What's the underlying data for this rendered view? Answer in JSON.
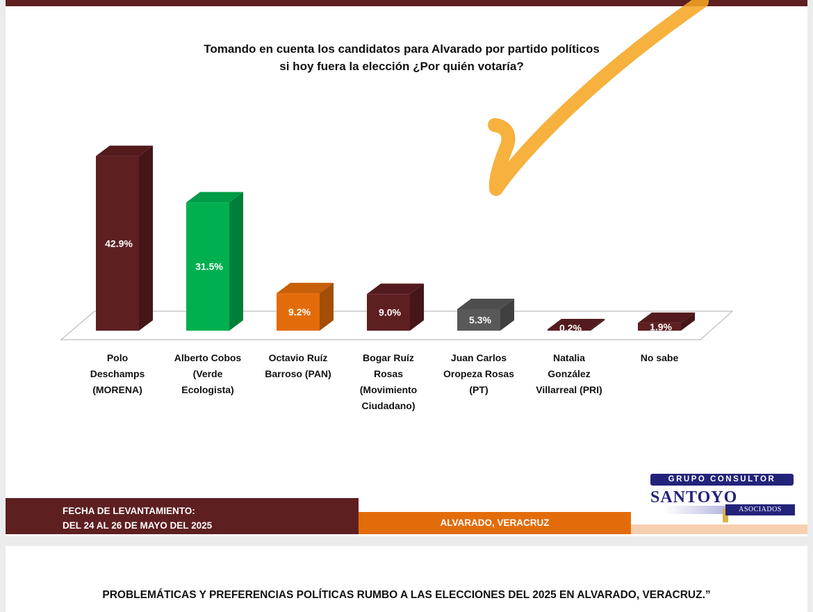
{
  "title": {
    "line1": "Tomando en cuenta los candidatos para Alvarado  por partido políticos",
    "line2": "si hoy fuera la elección ¿Por quién votaría?"
  },
  "chart_data": {
    "type": "bar",
    "title": "Tomando en cuenta los candidatos para Alvarado  por partido políticos si hoy fuera la elección ¿Por quién votaría?",
    "xlabel": "",
    "ylabel": "",
    "ylim": [
      0,
      45
    ],
    "grid": false,
    "legend": "none",
    "style": "3d-column",
    "categories": [
      "Polo\nDeschamps\n(MORENA)",
      "Alberto Cobos\n(Verde\nEcologista)",
      "Octavio Ruíz\nBarroso (PAN)",
      "Bogar Ruíz\nRosas\n(Movimiento\nCiudadano)",
      "Juan Carlos\nOropeza Rosas\n(PT)",
      "Natalia\nGonzález\nVillarreal (PRI)",
      "No sabe"
    ],
    "values": [
      42.9,
      31.5,
      9.2,
      9.0,
      5.3,
      0.2,
      1.9
    ],
    "value_labels": [
      "42.9%",
      "31.5%",
      "9.2%",
      "9.0%",
      "5.3%",
      "0.2%",
      "1.9%"
    ],
    "colors": [
      "#5e1f21",
      "#00b050",
      "#e36c0a",
      "#5e1f21",
      "#595959",
      "#5e1f21",
      "#5e1f21"
    ]
  },
  "footer": {
    "date_label": "FECHA DE LEVANTAMIENTO:",
    "date_value": "DEL 24 AL 26 DE MAYO DEL 2025",
    "location": "ALVARADO, VERACRUZ",
    "logo_top": "GRUPO CONSULTOR",
    "logo_main": "SANTOYO",
    "logo_sub": "ASOCIADOS"
  },
  "bottom_title": "PROBLEMÁTICAS Y PREFERENCIAS POLÍTICAS RUMBO A LAS ELECCIONES DEL 2025 EN ALVARADO, VERACRUZ.”",
  "colors": {
    "maroon": "#5e1f21",
    "orange": "#e36c0a",
    "green": "#00b050",
    "gray": "#595959",
    "check_mark": "#f5a623"
  }
}
